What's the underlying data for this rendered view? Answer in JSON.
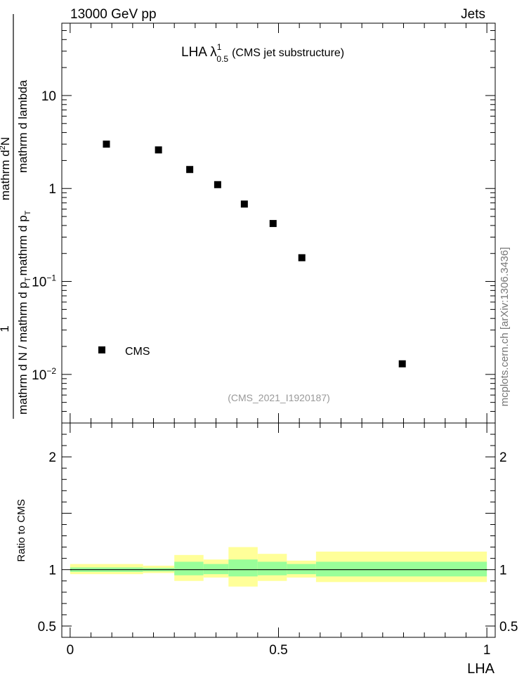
{
  "header": {
    "left": "13000 GeV pp",
    "right": "Jets"
  },
  "title": {
    "main": "LHA λ",
    "sup": "1",
    "sub": "0.5",
    "tail": "(CMS jet substructure)"
  },
  "ylabel": {
    "numerator_one": "1",
    "denominator": "mathrm d N / mathrm d p",
    "denominator_sub": "T",
    "denominator_tail": "mathrm d p",
    "denominator_tail_sub": "T",
    "frac_top": "mathrm d",
    "frac_top_sup": "2",
    "frac_top_tail": "N",
    "frac_bottom": "mathrm d lambda"
  },
  "side_label": "mcplots.cern.ch [arXiv:1306.3436]",
  "analysis_id": "(CMS_2021_I1920187)",
  "ratio_ylabel": "Ratio to CMS",
  "xlabel": "LHA",
  "legend": {
    "label": "CMS",
    "placement": "bottom-left"
  },
  "chart_data": {
    "type": "scatter",
    "main": {
      "yscale": "log",
      "xlim": [
        -0.02,
        1.02
      ],
      "ylim": [
        0.003,
        60
      ],
      "y_ticks": [
        {
          "value": 10,
          "label": "10"
        },
        {
          "value": 1,
          "label": "1"
        },
        {
          "value": 0.1,
          "label": "10",
          "sup": "−1"
        },
        {
          "value": 0.01,
          "label": "10",
          "sup": "−2"
        }
      ],
      "series": [
        {
          "name": "CMS",
          "marker": "square",
          "color": "#000000",
          "x": [
            0.087,
            0.212,
            0.287,
            0.354,
            0.418,
            0.487,
            0.556,
            0.797
          ],
          "y": [
            3.0,
            2.6,
            1.6,
            1.1,
            0.68,
            0.42,
            0.18,
            0.013
          ]
        }
      ]
    },
    "ratio": {
      "ylim": [
        0.4,
        2.3
      ],
      "y_ticks": [
        {
          "value": 2,
          "label": "2"
        },
        {
          "value": 1,
          "label": "1"
        },
        {
          "value": 0.5,
          "label": "0.5"
        }
      ],
      "x_ticks": [
        {
          "value": 0,
          "label": "0"
        },
        {
          "value": 0.5,
          "label": "0.5"
        },
        {
          "value": 1,
          "label": "1"
        }
      ],
      "bands": [
        {
          "x0": 0.0,
          "x1": 0.175,
          "stat": [
            0.98,
            1.02
          ],
          "total": [
            0.96,
            1.05
          ]
        },
        {
          "x0": 0.175,
          "x1": 0.25,
          "stat": [
            0.985,
            1.015
          ],
          "total": [
            0.97,
            1.035
          ]
        },
        {
          "x0": 0.25,
          "x1": 0.32,
          "stat": [
            0.95,
            1.07
          ],
          "total": [
            0.9,
            1.13
          ]
        },
        {
          "x0": 0.32,
          "x1": 0.38,
          "stat": [
            0.96,
            1.05
          ],
          "total": [
            0.93,
            1.09
          ]
        },
        {
          "x0": 0.38,
          "x1": 0.45,
          "stat": [
            0.94,
            1.09
          ],
          "total": [
            0.85,
            1.2
          ]
        },
        {
          "x0": 0.45,
          "x1": 0.52,
          "stat": [
            0.95,
            1.07
          ],
          "total": [
            0.9,
            1.14
          ]
        },
        {
          "x0": 0.52,
          "x1": 0.59,
          "stat": [
            0.96,
            1.05
          ],
          "total": [
            0.93,
            1.08
          ]
        },
        {
          "x0": 0.59,
          "x1": 1.0,
          "stat": [
            0.94,
            1.07
          ],
          "total": [
            0.89,
            1.16
          ]
        }
      ],
      "stat_color": "#99ff99",
      "total_color": "#ffff99"
    }
  }
}
